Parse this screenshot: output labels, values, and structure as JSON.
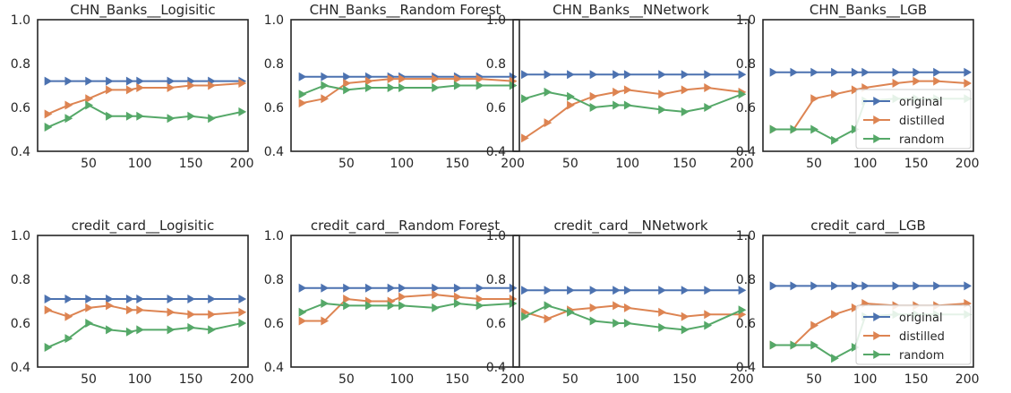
{
  "colors": {
    "original": "#4c72b0",
    "distilled": "#dd8452",
    "random": "#55a868",
    "frame": "#262626"
  },
  "chart_data": [
    {
      "type": "line",
      "title": "CHN_Banks__Logisitic",
      "x": [
        10,
        30,
        50,
        70,
        90,
        100,
        130,
        150,
        170,
        200
      ],
      "xticks": [
        "50",
        "100",
        "150",
        "200"
      ],
      "yticks": [
        "0.4",
        "0.6",
        "0.8",
        "1.0"
      ],
      "ylim": [
        0.4,
        1.0
      ],
      "legend": "none",
      "series": [
        {
          "key": "original",
          "values": [
            0.72,
            0.72,
            0.72,
            0.72,
            0.72,
            0.72,
            0.72,
            0.72,
            0.72,
            0.72
          ]
        },
        {
          "key": "distilled",
          "values": [
            0.57,
            0.61,
            0.64,
            0.68,
            0.68,
            0.69,
            0.69,
            0.7,
            0.7,
            0.71
          ]
        },
        {
          "key": "random",
          "values": [
            0.51,
            0.55,
            0.61,
            0.56,
            0.56,
            0.56,
            0.55,
            0.56,
            0.55,
            0.58
          ]
        }
      ]
    },
    {
      "type": "line",
      "title": "CHN_Banks__Random Forest",
      "x": [
        10,
        30,
        50,
        70,
        90,
        100,
        130,
        150,
        170,
        200
      ],
      "xticks": [
        "50",
        "100",
        "150",
        "200"
      ],
      "yticks": [
        "0.4",
        "0.6",
        "0.8",
        "1.0"
      ],
      "ylim": [
        0.4,
        1.0
      ],
      "legend": "none",
      "series": [
        {
          "key": "original",
          "values": [
            0.74,
            0.74,
            0.74,
            0.74,
            0.74,
            0.74,
            0.74,
            0.74,
            0.74,
            0.74
          ]
        },
        {
          "key": "distilled",
          "values": [
            0.62,
            0.64,
            0.71,
            0.72,
            0.73,
            0.73,
            0.73,
            0.73,
            0.73,
            0.72
          ]
        },
        {
          "key": "random",
          "values": [
            0.66,
            0.7,
            0.68,
            0.69,
            0.69,
            0.69,
            0.69,
            0.7,
            0.7,
            0.7
          ]
        }
      ]
    },
    {
      "type": "line",
      "title": "CHN_Banks__NNetwork",
      "x": [
        10,
        30,
        50,
        70,
        90,
        100,
        130,
        150,
        170,
        200
      ],
      "xticks": [
        "50",
        "100",
        "150",
        "200"
      ],
      "yticks": [
        "0.4",
        "0.6",
        "0.8",
        "1.0"
      ],
      "ylim": [
        0.4,
        1.0
      ],
      "legend": "none",
      "series": [
        {
          "key": "original",
          "values": [
            0.75,
            0.75,
            0.75,
            0.75,
            0.75,
            0.75,
            0.75,
            0.75,
            0.75,
            0.75
          ]
        },
        {
          "key": "distilled",
          "values": [
            0.46,
            0.53,
            0.61,
            0.65,
            0.67,
            0.68,
            0.66,
            0.68,
            0.69,
            0.67
          ]
        },
        {
          "key": "random",
          "values": [
            0.64,
            0.67,
            0.65,
            0.6,
            0.61,
            0.61,
            0.59,
            0.58,
            0.6,
            0.66
          ]
        }
      ]
    },
    {
      "type": "line",
      "title": "CHN_Banks__LGB",
      "x": [
        10,
        30,
        50,
        70,
        90,
        100,
        130,
        150,
        170,
        200
      ],
      "xticks": [
        "50",
        "100",
        "150",
        "200"
      ],
      "yticks": [
        "0.4",
        "0.6",
        "0.8",
        "1.0"
      ],
      "ylim": [
        0.4,
        1.0
      ],
      "legend": "lower right",
      "series": [
        {
          "key": "original",
          "label": "original",
          "values": [
            0.76,
            0.76,
            0.76,
            0.76,
            0.76,
            0.76,
            0.76,
            0.76,
            0.76,
            0.76
          ]
        },
        {
          "key": "distilled",
          "label": "distilled",
          "values": [
            0.5,
            0.5,
            0.64,
            0.66,
            0.68,
            0.69,
            0.71,
            0.72,
            0.72,
            0.71
          ]
        },
        {
          "key": "random",
          "label": "random",
          "values": [
            0.5,
            0.5,
            0.5,
            0.45,
            0.5,
            0.63,
            0.64,
            0.64,
            0.64,
            0.64
          ]
        }
      ]
    },
    {
      "type": "line",
      "title": "credit_card__Logisitic",
      "x": [
        10,
        30,
        50,
        70,
        90,
        100,
        130,
        150,
        170,
        200
      ],
      "xticks": [
        "50",
        "100",
        "150",
        "200"
      ],
      "yticks": [
        "0.4",
        "0.6",
        "0.8",
        "1.0"
      ],
      "ylim": [
        0.4,
        1.0
      ],
      "legend": "none",
      "series": [
        {
          "key": "original",
          "values": [
            0.71,
            0.71,
            0.71,
            0.71,
            0.71,
            0.71,
            0.71,
            0.71,
            0.71,
            0.71
          ]
        },
        {
          "key": "distilled",
          "values": [
            0.66,
            0.63,
            0.67,
            0.68,
            0.66,
            0.66,
            0.65,
            0.64,
            0.64,
            0.65
          ]
        },
        {
          "key": "random",
          "values": [
            0.49,
            0.53,
            0.6,
            0.57,
            0.56,
            0.57,
            0.57,
            0.58,
            0.57,
            0.6
          ]
        }
      ]
    },
    {
      "type": "line",
      "title": "credit_card__Random Forest",
      "x": [
        10,
        30,
        50,
        70,
        90,
        100,
        130,
        150,
        170,
        200
      ],
      "xticks": [
        "50",
        "100",
        "150",
        "200"
      ],
      "yticks": [
        "0.4",
        "0.6",
        "0.8",
        "1.0"
      ],
      "ylim": [
        0.4,
        1.0
      ],
      "legend": "none",
      "series": [
        {
          "key": "original",
          "values": [
            0.76,
            0.76,
            0.76,
            0.76,
            0.76,
            0.76,
            0.76,
            0.76,
            0.76,
            0.76
          ]
        },
        {
          "key": "distilled",
          "values": [
            0.61,
            0.61,
            0.71,
            0.7,
            0.7,
            0.72,
            0.73,
            0.72,
            0.71,
            0.71
          ]
        },
        {
          "key": "random",
          "values": [
            0.65,
            0.69,
            0.68,
            0.68,
            0.68,
            0.68,
            0.67,
            0.69,
            0.68,
            0.69
          ]
        }
      ]
    },
    {
      "type": "line",
      "title": "credit_card__NNetwork",
      "x": [
        10,
        30,
        50,
        70,
        90,
        100,
        130,
        150,
        170,
        200
      ],
      "xticks": [
        "50",
        "100",
        "150",
        "200"
      ],
      "yticks": [
        "0.4",
        "0.6",
        "0.8",
        "1.0"
      ],
      "ylim": [
        0.4,
        1.0
      ],
      "legend": "none",
      "series": [
        {
          "key": "original",
          "values": [
            0.75,
            0.75,
            0.75,
            0.75,
            0.75,
            0.75,
            0.75,
            0.75,
            0.75,
            0.75
          ]
        },
        {
          "key": "distilled",
          "values": [
            0.65,
            0.62,
            0.66,
            0.67,
            0.68,
            0.67,
            0.65,
            0.63,
            0.64,
            0.64
          ]
        },
        {
          "key": "random",
          "values": [
            0.63,
            0.68,
            0.65,
            0.61,
            0.6,
            0.6,
            0.58,
            0.57,
            0.59,
            0.66
          ]
        }
      ]
    },
    {
      "type": "line",
      "title": "credit_card__LGB",
      "x": [
        10,
        30,
        50,
        70,
        90,
        100,
        130,
        150,
        170,
        200
      ],
      "xticks": [
        "50",
        "100",
        "150",
        "200"
      ],
      "yticks": [
        "0.4",
        "0.6",
        "0.8",
        "1.0"
      ],
      "ylim": [
        0.4,
        1.0
      ],
      "legend": "lower right",
      "series": [
        {
          "key": "original",
          "label": "original",
          "values": [
            0.77,
            0.77,
            0.77,
            0.77,
            0.77,
            0.77,
            0.77,
            0.77,
            0.77,
            0.77
          ]
        },
        {
          "key": "distilled",
          "label": "distilled",
          "values": [
            0.5,
            0.5,
            0.59,
            0.64,
            0.67,
            0.69,
            0.68,
            0.68,
            0.68,
            0.69
          ]
        },
        {
          "key": "random",
          "label": "random",
          "values": [
            0.5,
            0.5,
            0.5,
            0.44,
            0.49,
            0.63,
            0.64,
            0.64,
            0.64,
            0.64
          ]
        }
      ]
    }
  ]
}
